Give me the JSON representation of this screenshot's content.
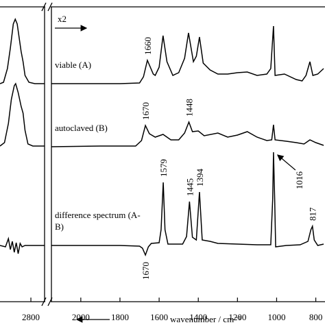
{
  "chart_data": [
    {
      "type": "line",
      "xlim": [
        2958,
        2730
      ],
      "xticks": [
        2800
      ],
      "ylim": [
        0,
        43
      ],
      "series": [
        {
          "color": "#000000",
          "x": [
            2958,
            2940,
            2920,
            2905,
            2890,
            2880,
            2870,
            2860,
            2850,
            2840,
            2830,
            2810,
            2780,
            2730
          ],
          "values": [
            31.8,
            32.0,
            34.0,
            37.0,
            40.5,
            41.2,
            40.5,
            38.5,
            36.5,
            35.0,
            33.0,
            32.0,
            31.8,
            31.8
          ]
        },
        {
          "color": "#000000",
          "x": [
            2958,
            2935,
            2915,
            2900,
            2885,
            2878,
            2865,
            2850,
            2840,
            2830,
            2815,
            2790,
            2730
          ],
          "values": [
            22.7,
            23.2,
            26.0,
            29.5,
            31.5,
            31.8,
            30.5,
            28.5,
            27.5,
            25.0,
            23.0,
            22.7,
            22.7
          ]
        },
        {
          "color": "#000000",
          "x": [
            2958,
            2930,
            2915,
            2905,
            2895,
            2885,
            2875,
            2865,
            2855,
            2845,
            2830,
            2730
          ],
          "values": [
            8.2,
            8.0,
            9.2,
            7.6,
            8.8,
            7.2,
            8.6,
            7.0,
            8.5,
            8.0,
            8.2,
            8.2
          ]
        }
      ]
    },
    {
      "type": "line",
      "xlabel": "wavenumber / cm⁻¹",
      "scale_note": "x2",
      "xlim": [
        2150,
        753
      ],
      "xticks": [
        2000,
        1800,
        1600,
        1400,
        1200,
        1000,
        800
      ],
      "ylim": [
        0,
        43
      ],
      "series": [
        {
          "name": "viable (A)",
          "color": "#000000",
          "x": [
            2150,
            2000,
            1800,
            1700,
            1680,
            1660,
            1630,
            1620,
            1600,
            1580,
            1560,
            1530,
            1500,
            1470,
            1450,
            1425,
            1410,
            1394,
            1375,
            1340,
            1300,
            1250,
            1200,
            1150,
            1100,
            1050,
            1030,
            1016,
            1008,
            960,
            900,
            870,
            850,
            830,
            815,
            790,
            760
          ],
          "values": [
            31.8,
            31.8,
            31.8,
            31.9,
            32.8,
            35.2,
            33.2,
            33.0,
            34.2,
            38.8,
            35.0,
            33.0,
            33.4,
            35.5,
            39.2,
            35.0,
            35.8,
            38.6,
            34.8,
            33.8,
            33.2,
            33.2,
            33.4,
            33.5,
            33.0,
            33.2,
            34.0,
            40.2,
            33.0,
            33.2,
            32.4,
            32.2,
            33.0,
            35.0,
            33.0,
            33.2,
            34.0
          ]
        },
        {
          "name": "autoclaved (B)",
          "color": "#000000",
          "x": [
            2150,
            1900,
            1720,
            1690,
            1670,
            1650,
            1620,
            1580,
            1540,
            1500,
            1470,
            1448,
            1430,
            1400,
            1370,
            1300,
            1250,
            1200,
            1150,
            1100,
            1050,
            1025,
            1016,
            1008,
            950,
            900,
            860,
            830,
            800,
            760
          ],
          "values": [
            22.6,
            22.7,
            22.7,
            23.5,
            25.7,
            24.5,
            24.0,
            24.4,
            23.6,
            23.6,
            24.6,
            26.2,
            24.8,
            24.9,
            24.2,
            24.6,
            24.0,
            24.3,
            24.8,
            24.0,
            23.5,
            23.6,
            25.8,
            23.6,
            23.4,
            23.2,
            23.0,
            23.6,
            23.2,
            22.8
          ]
        },
        {
          "name": "difference spectrum (A-B)",
          "color": "#000000",
          "x": [
            2150,
            1800,
            1700,
            1685,
            1670,
            1655,
            1640,
            1600,
            1590,
            1579,
            1570,
            1555,
            1480,
            1460,
            1445,
            1430,
            1410,
            1394,
            1380,
            1340,
            1300,
            1200,
            1100,
            1030,
            1020,
            1016,
            1010,
            1005,
            950,
            880,
            840,
            825,
            817,
            808,
            790,
            760
          ],
          "values": [
            8.2,
            8.2,
            8.1,
            7.8,
            6.8,
            8.0,
            8.5,
            8.6,
            10.5,
            17.4,
            10.5,
            8.4,
            8.4,
            9.5,
            14.6,
            9.4,
            9.0,
            16.0,
            9.0,
            8.8,
            8.5,
            8.4,
            8.3,
            8.3,
            15.0,
            21.8,
            15.0,
            8.0,
            8.2,
            8.3,
            8.8,
            10.5,
            11.0,
            9.0,
            8.2,
            8.4
          ]
        }
      ],
      "annotations": [
        {
          "label": "1660",
          "x": 1660,
          "series": 0,
          "position": "above"
        },
        {
          "label": "1670",
          "x": 1670,
          "series": 1,
          "position": "above"
        },
        {
          "label": "1448",
          "x": 1448,
          "series": 1,
          "position": "above"
        },
        {
          "label": "1579",
          "x": 1579,
          "series": 2,
          "position": "above"
        },
        {
          "label": "1445",
          "x": 1445,
          "series": 2,
          "position": "above"
        },
        {
          "label": "1394",
          "x": 1394,
          "series": 2,
          "position": "above"
        },
        {
          "label": "1016",
          "x": 1016,
          "series": 2,
          "position": "arrow"
        },
        {
          "label": "817",
          "x": 817,
          "series": 2,
          "position": "above"
        },
        {
          "label": "1670",
          "x": 1670,
          "series": 2,
          "position": "below"
        }
      ]
    }
  ]
}
